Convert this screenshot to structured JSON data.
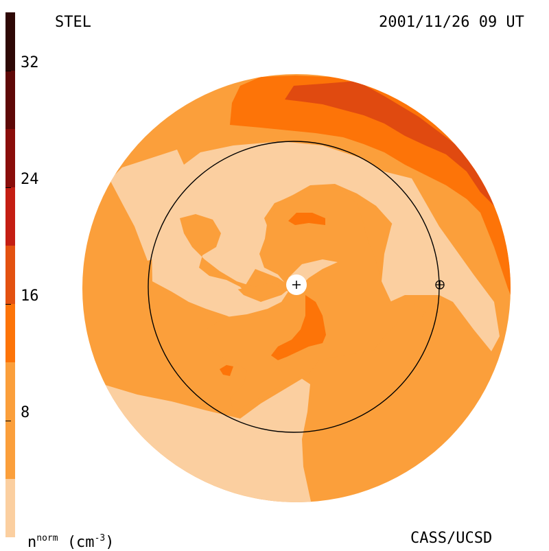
{
  "header": {
    "instrument": "STEL",
    "timestamp": "2001/11/26 09 UT"
  },
  "footer": {
    "credit": "CASS/UCSD"
  },
  "colorbar": {
    "label_main": "n",
    "label_sup": "norm",
    "label_unit": "(cm",
    "label_unit_sup": "-3",
    "label_close": ")",
    "levels": [
      {
        "from": 0,
        "to": 4,
        "color": "#fbcfa0"
      },
      {
        "from": 4,
        "to": 12,
        "color": "#fb9f3b"
      },
      {
        "from": 12,
        "to": 16,
        "color": "#fd7408"
      },
      {
        "from": 16,
        "to": 20,
        "color": "#e35110"
      },
      {
        "from": 20,
        "to": 24,
        "color": "#c41e13"
      },
      {
        "from": 24,
        "to": 28,
        "color": "#8a0d0a"
      },
      {
        "from": 28,
        "to": 32,
        "color": "#5e0807"
      },
      {
        "from": 32,
        "to": 36,
        "color": "#2e0806"
      }
    ],
    "ticks": [
      "8",
      "16",
      "24",
      "32"
    ]
  },
  "colors": {
    "light": "#fbcfa0",
    "base": "#fb9f3b",
    "mid": "#fd7408",
    "dark": "#e04a10"
  }
}
